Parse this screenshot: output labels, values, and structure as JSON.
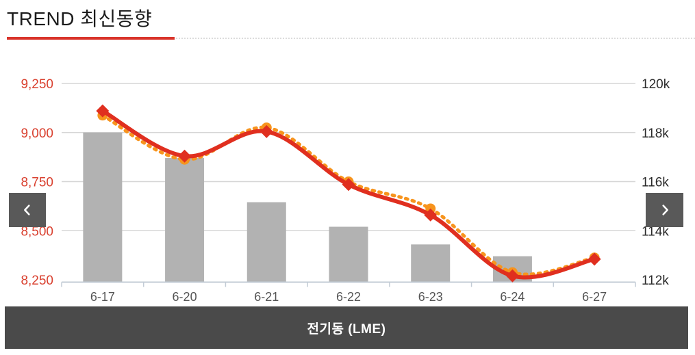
{
  "page": {
    "title": "TREND 최신동향"
  },
  "theme": {
    "accent": "#d9342b",
    "title_color": "#1b1b1b",
    "bar_color": "#b2b2b2",
    "red_line_color": "#e02f1f",
    "orange_line_color": "#f7941d",
    "grid_color": "#d6d6d6",
    "axis_line_color": "#c3ccd6",
    "left_tick_color": "#d9402f",
    "right_tick_color": "#2b2b2b",
    "x_tick_color": "#555555",
    "nav_button_bg": "#595959",
    "footer_bg": "#4a4a4a",
    "footer_text": "#ffffff"
  },
  "nav": {
    "prev_label": "previous",
    "next_label": "next"
  },
  "footer": {
    "label": "전기동 (LME)"
  },
  "chart_data": {
    "type": "combo",
    "title": "",
    "categories": [
      "6-17",
      "6-20",
      "6-21",
      "6-22",
      "6-23",
      "6-24",
      "6-27"
    ],
    "series": [
      {
        "name": "volume-bars",
        "type": "bar",
        "axis": "left",
        "color": "#b2b2b2",
        "values": [
          9000,
          8870,
          8645,
          8520,
          8430,
          8370,
          null
        ]
      },
      {
        "name": "orange-dotted-line",
        "type": "line",
        "style": "dotted",
        "axis": "right",
        "color": "#f7941d",
        "marker": "circle",
        "values": [
          118.7,
          116.9,
          118.2,
          116.0,
          114.9,
          112.3,
          112.9
        ]
      },
      {
        "name": "red-solid-line",
        "type": "line",
        "style": "solid",
        "axis": "left",
        "color": "#e02f1f",
        "marker": "diamond",
        "values": [
          9110,
          8880,
          9005,
          8735,
          8580,
          8270,
          8355
        ]
      }
    ],
    "left_axis": {
      "min": 8250,
      "max": 9250,
      "ticks": [
        {
          "value": 9250,
          "label": "9,250"
        },
        {
          "value": 9000,
          "label": "9,000"
        },
        {
          "value": 8750,
          "label": "8,750"
        },
        {
          "value": 8500,
          "label": "8,500"
        },
        {
          "value": 8250,
          "label": "8,250"
        }
      ]
    },
    "right_axis": {
      "min": 112,
      "max": 120,
      "ticks": [
        {
          "value": 120,
          "label": "120k"
        },
        {
          "value": 118,
          "label": "118k"
        },
        {
          "value": 116,
          "label": "116k"
        },
        {
          "value": 114,
          "label": "114k"
        },
        {
          "value": 112,
          "label": "112k"
        }
      ]
    },
    "grid": "horizontal",
    "legend": "none"
  }
}
